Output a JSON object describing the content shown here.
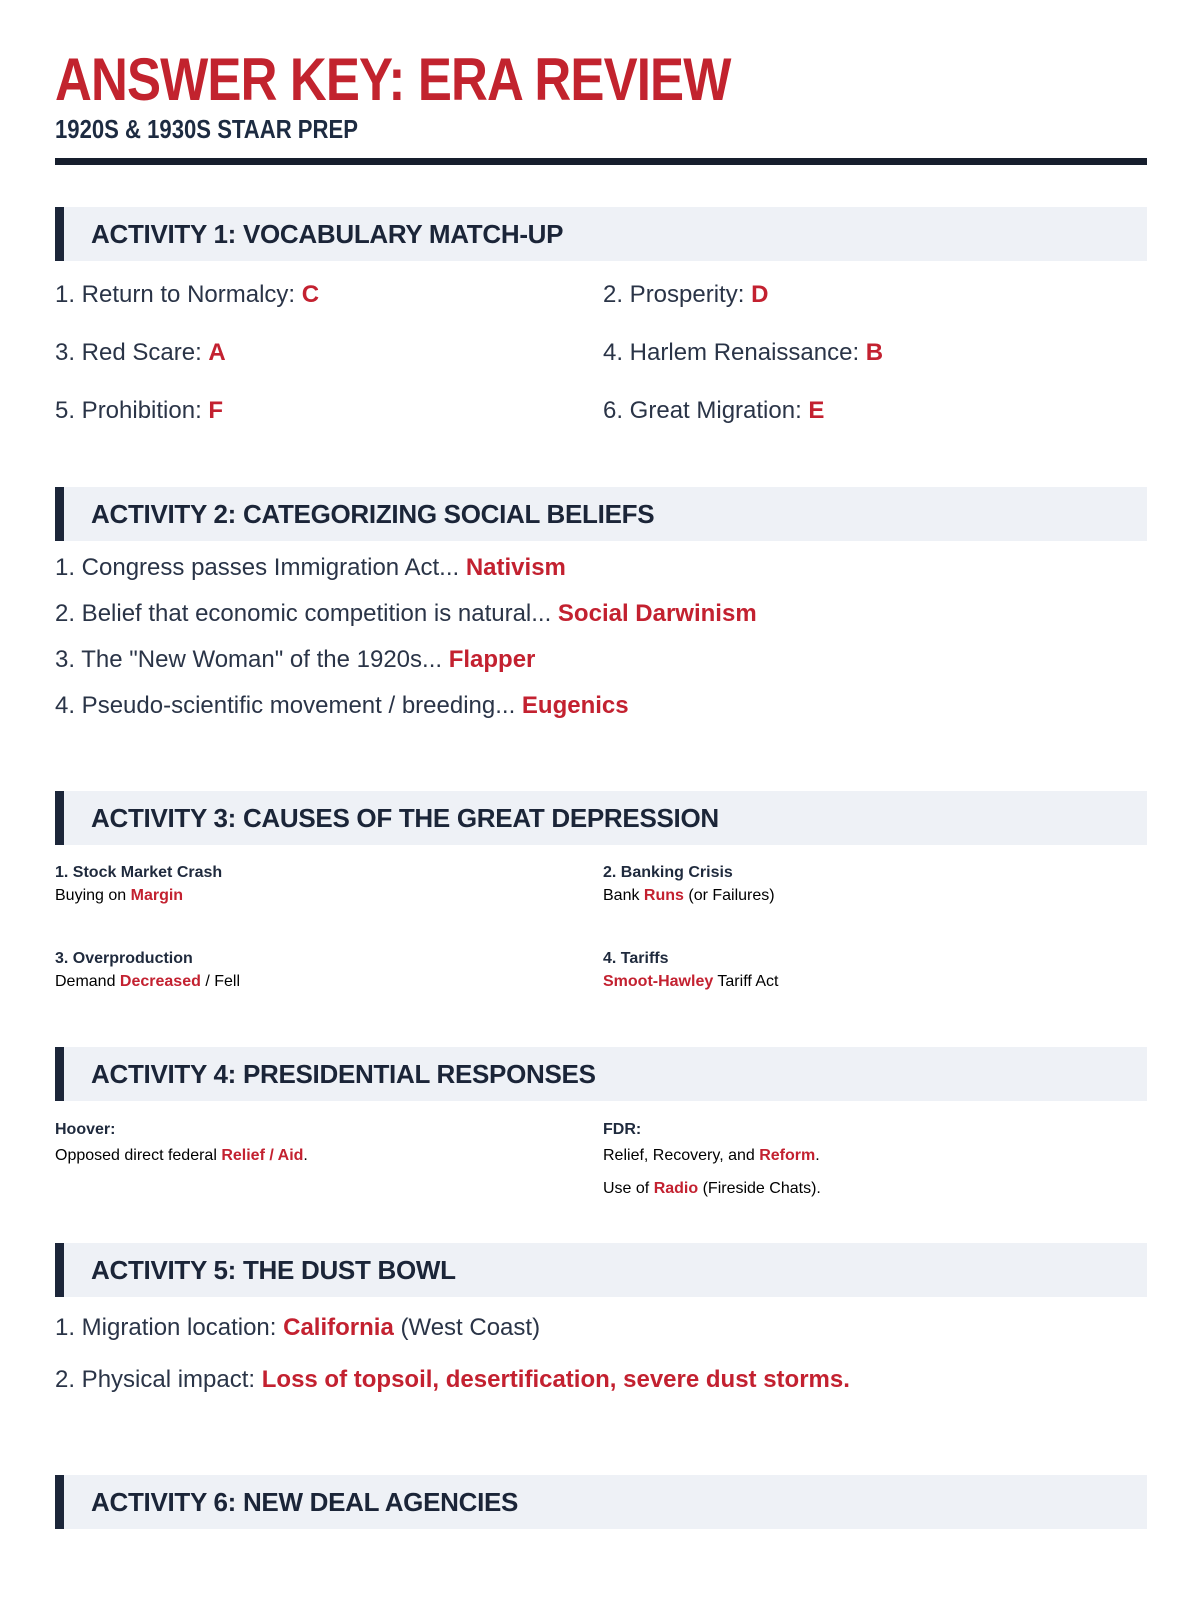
{
  "masthead": {
    "title": "ANSWER KEY: ERA REVIEW",
    "subtitle": "1920S & 1930S STAAR PREP"
  },
  "colors": {
    "accent_red": "#c32130",
    "navy": "#1c2639",
    "section_bar_bg": "#eef1f6"
  },
  "sections": {
    "activity1": {
      "title": "ACTIVITY 1: VOCABULARY MATCH-UP",
      "items": [
        {
          "pre": "1. Return to Normalcy: ",
          "answer": "C"
        },
        {
          "pre": "2. Prosperity: ",
          "answer": "D"
        },
        {
          "pre": "3. Red Scare: ",
          "answer": "A"
        },
        {
          "pre": "4. Harlem Renaissance: ",
          "answer": "B"
        },
        {
          "pre": "5. Prohibition: ",
          "answer": "F"
        },
        {
          "pre": "6. Great Migration: ",
          "answer": "E"
        }
      ]
    },
    "activity2": {
      "title": "ACTIVITY 2: CATEGORIZING SOCIAL BELIEFS",
      "items": [
        {
          "pre": "1. Congress passes Immigration Act... ",
          "answer": "Nativism"
        },
        {
          "pre": "2. Belief that economic competition is natural... ",
          "answer": "Social Darwinism"
        },
        {
          "pre": "3. The \"New Woman\" of the 1920s... ",
          "answer": "Flapper"
        },
        {
          "pre": "4. Pseudo-scientific movement / breeding... ",
          "answer": "Eugenics"
        }
      ]
    },
    "activity3": {
      "title": "ACTIVITY 3: CAUSES OF THE GREAT DEPRESSION",
      "cells": [
        {
          "heading": "1. Stock Market Crash",
          "pre": "Buying on ",
          "answer": "Margin",
          "post": ""
        },
        {
          "heading": "2. Banking Crisis",
          "pre": "Bank ",
          "answer": "Runs",
          "post": " (or Failures)"
        },
        {
          "heading": "3. Overproduction",
          "pre": "Demand ",
          "answer": "Decreased",
          "post": " / Fell"
        },
        {
          "heading": "4. Tariffs",
          "pre": "",
          "answer": "Smoot-Hawley",
          "post": " Tariff Act"
        }
      ]
    },
    "activity4": {
      "title": "ACTIVITY 4: PRESIDENTIAL RESPONSES",
      "hoover": {
        "label": "Hoover:",
        "line1": {
          "pre": "Opposed direct federal ",
          "answer": "Relief / Aid",
          "post": "."
        }
      },
      "fdr": {
        "label": "FDR:",
        "line1": {
          "pre": "Relief, Recovery, and ",
          "answer": "Reform",
          "post": "."
        },
        "line2": {
          "pre": "Use of ",
          "answer": "Radio",
          "post": " (Fireside Chats)."
        }
      }
    },
    "activity5": {
      "title": "ACTIVITY 5: THE DUST BOWL",
      "items": [
        {
          "pre": "1. Migration location: ",
          "answer": "California",
          "post": " (West Coast)"
        },
        {
          "pre": "2. Physical impact: ",
          "answer": "Loss of topsoil, desertification, severe dust storms.",
          "post": ""
        }
      ]
    },
    "activity6": {
      "title": "ACTIVITY 6: NEW DEAL AGENCIES"
    }
  }
}
